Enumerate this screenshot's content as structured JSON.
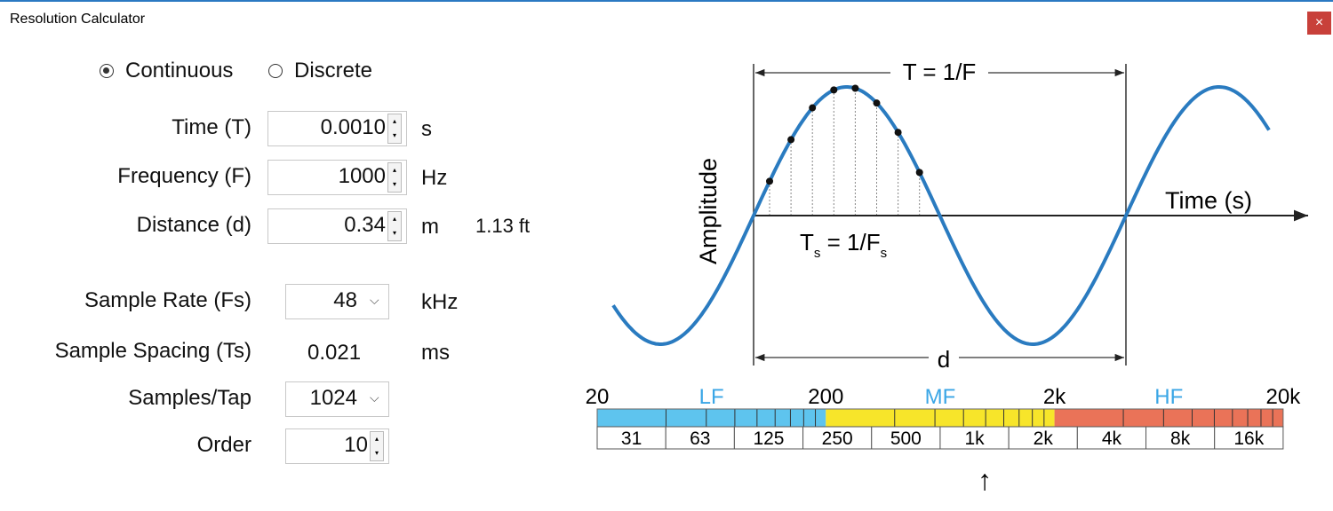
{
  "window": {
    "title": "Resolution Calculator",
    "close": "×"
  },
  "mode": [
    {
      "label": "Continuous",
      "checked": true
    },
    {
      "label": "Discrete",
      "checked": false
    }
  ],
  "fields": [
    {
      "label": "Time (T)",
      "value": "0.0010",
      "unit": "s"
    },
    {
      "label": "Frequency (F)",
      "value": "1000",
      "unit": "Hz"
    },
    {
      "label": "Distance (d)",
      "value": "0.34",
      "unit": "m",
      "extra": "1.13 ft"
    }
  ],
  "sampling": [
    {
      "label": "Sample Rate (Fs)",
      "value": "48",
      "unit": "kHz",
      "control": "dropdown"
    },
    {
      "label": "Sample Spacing (Ts)",
      "value": "0.021",
      "unit": "ms",
      "control": "text"
    },
    {
      "label": "Samples/Tap",
      "value": "1024",
      "control": "dropdown"
    },
    {
      "label": "Order",
      "value": "10",
      "control": "spinner"
    }
  ],
  "diagram": {
    "period_label": "T = 1/F",
    "y_label": "Amplitude",
    "x_label": "Time (s)",
    "distance_label": "d",
    "sample_label": [
      {
        "text": "T",
        "sub": false
      },
      {
        "text": "s",
        "sub": true
      },
      {
        "text": " = 1/F",
        "sub": false
      },
      {
        "text": "s",
        "sub": true
      }
    ]
  },
  "band": {
    "edges": [
      "20",
      "200",
      "2k",
      "20k"
    ],
    "regions": [
      {
        "name": "LF",
        "color": "#5ec4ee"
      },
      {
        "name": "MF",
        "color": "#f7e52a"
      },
      {
        "name": "HF",
        "color": "#ea7358"
      }
    ],
    "octaves": [
      "31",
      "63",
      "125",
      "250",
      "500",
      "1k",
      "2k",
      "4k",
      "8k",
      "16k"
    ],
    "marker": "↑"
  }
}
